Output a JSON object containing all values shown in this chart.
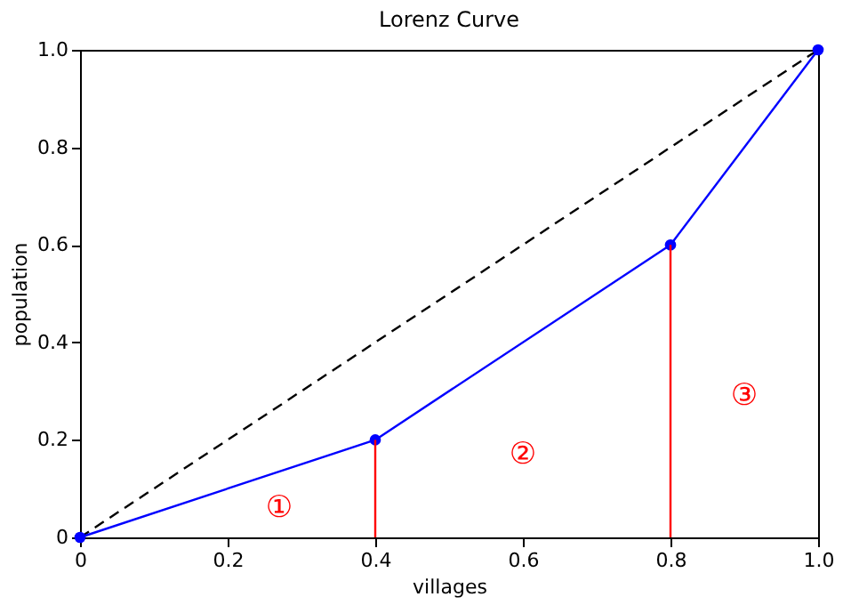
{
  "chart_data": {
    "type": "line",
    "title": "Lorenz Curve",
    "xlabel": "villages",
    "ylabel": "population",
    "xlim": [
      0,
      1
    ],
    "ylim": [
      0,
      1
    ],
    "xticks": [
      0,
      0.2,
      0.4,
      0.6,
      0.8,
      {
        "value": 1,
        "label": "1.0"
      }
    ],
    "yticks": [
      0,
      0.2,
      0.4,
      0.6,
      0.8,
      {
        "value": 1,
        "label": "1.0"
      }
    ],
    "grid": false,
    "series": [
      {
        "color": "#000000",
        "x": [
          0,
          1
        ],
        "values": [
          0,
          1
        ],
        "line_style": "dashed",
        "marker": "none"
      },
      {
        "color": "#0000ff",
        "x": [
          0,
          0.4,
          0.8,
          1
        ],
        "values": [
          0,
          0.2,
          0.6,
          1
        ],
        "line_style": "solid",
        "marker": "circle"
      },
      {
        "color": "#ff0000",
        "x": [
          0.4,
          0.4
        ],
        "values": [
          0,
          0.2
        ],
        "line_style": "solid",
        "marker": "none"
      },
      {
        "color": "#ff0000",
        "x": [
          0.8,
          0.8
        ],
        "values": [
          0,
          0.6
        ],
        "line_style": "solid",
        "marker": "none"
      }
    ],
    "annotations": [
      "①",
      "②",
      "③"
    ]
  }
}
